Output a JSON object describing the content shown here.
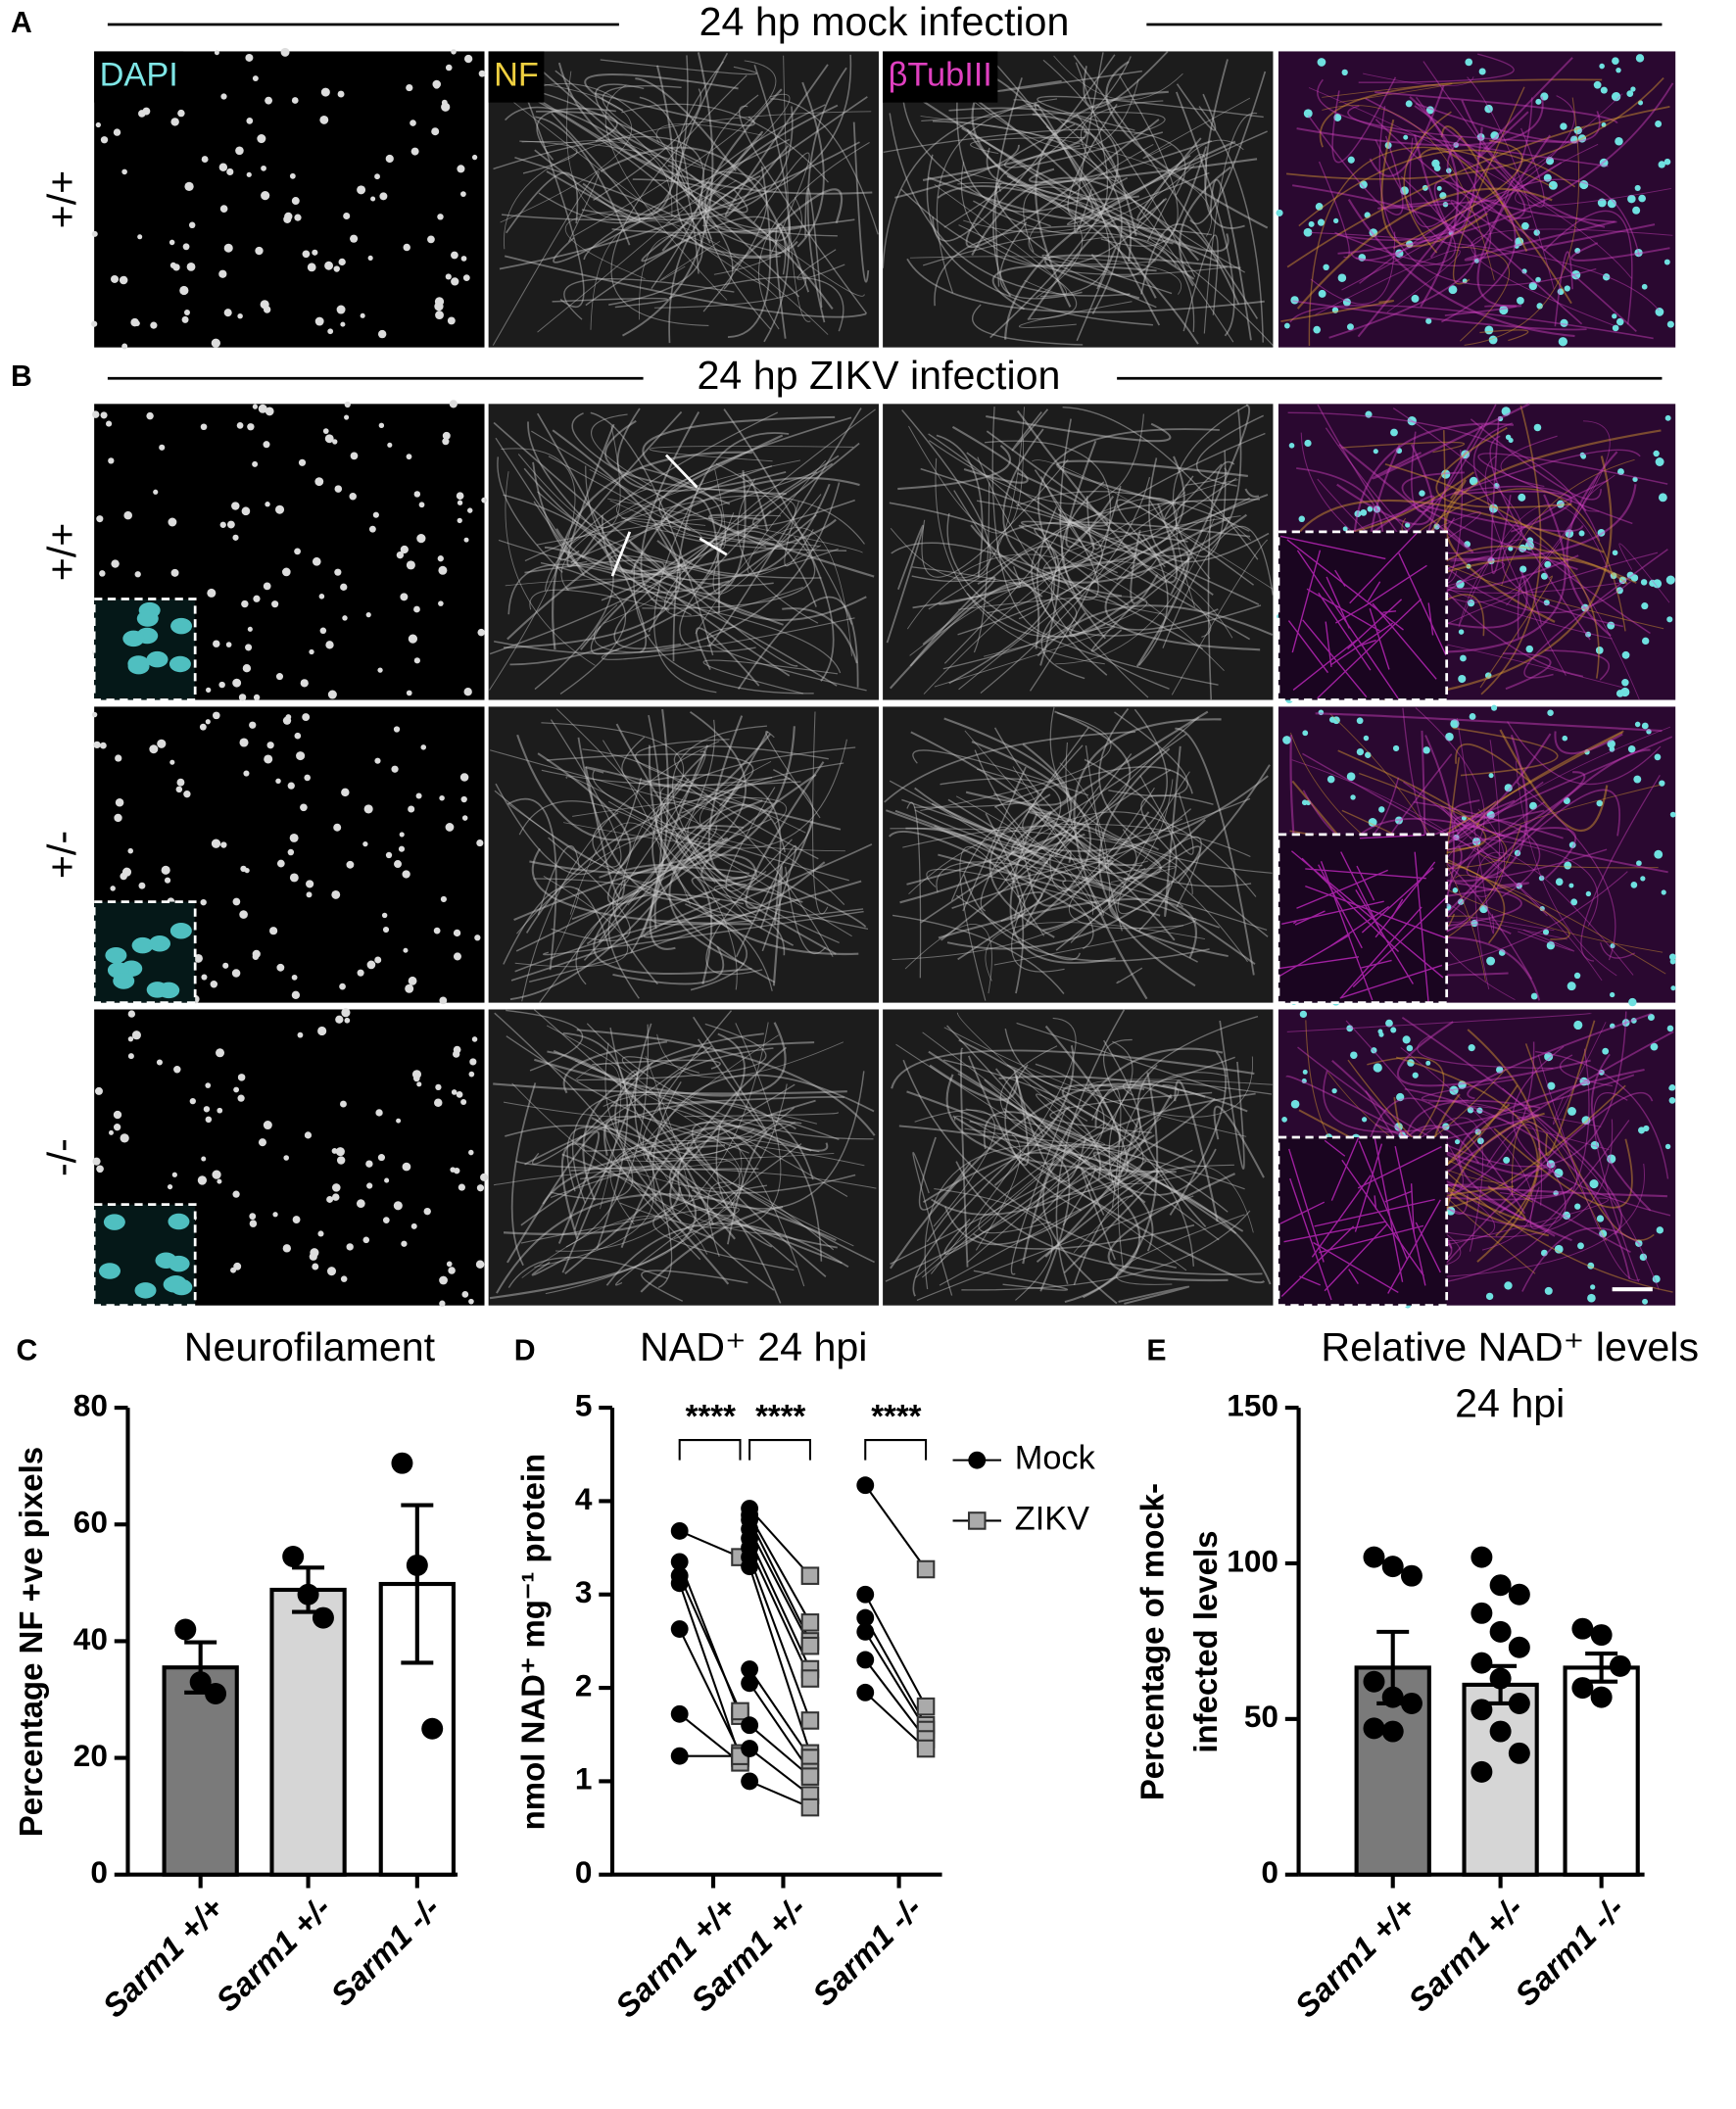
{
  "panel_A": {
    "letter": "A",
    "title": "24 hp mock infection",
    "channels": [
      "DAPI",
      "NF",
      "βTubIII"
    ],
    "rows": [
      "+/+"
    ]
  },
  "panel_B": {
    "letter": "B",
    "title": "24 hp ZIKV infection",
    "rows": [
      "+/+",
      "+/-",
      "-/-"
    ]
  },
  "chart_data": [
    {
      "type": "bar",
      "label": "C",
      "title": "Neurofilament",
      "ylabel": "Percentage NF +ve pixels",
      "categories": [
        "Sarm1 +/+",
        "Sarm1 +/-",
        "Sarm1 -/-"
      ],
      "values": [
        35.5,
        48.8,
        49.8
      ],
      "errors": [
        4.3,
        3.8,
        13.5
      ],
      "points": [
        [
          42,
          33,
          31
        ],
        [
          54.5,
          48,
          44
        ],
        [
          70.5,
          53,
          25
        ]
      ],
      "colors": [
        "#7a7a7a",
        "#d6d6d6",
        "#ffffff"
      ],
      "ylim": [
        0,
        80
      ],
      "yticks": [
        0,
        20,
        40,
        60,
        80
      ]
    },
    {
      "type": "scatter",
      "label": "D",
      "title": "NAD⁺ 24 hpi",
      "ylabel": "nmol NAD⁺ mg⁻¹ protein",
      "categories": [
        "Sarm1 +/+",
        "Sarm1 +/-",
        "Sarm1 -/-"
      ],
      "series": [
        {
          "name": "Mock",
          "color": "#000000",
          "values": [
            [
              3.68,
              3.35,
              3.2,
              3.12,
              2.63,
              1.72,
              1.27
            ],
            [
              3.92,
              3.85,
              3.8,
              3.7,
              3.6,
              3.5,
              3.4,
              3.3,
              2.2,
              2.05,
              1.6,
              1.35,
              1.0
            ],
            [
              4.17,
              3.0,
              2.75,
              2.6,
              2.3,
              1.95
            ]
          ]
        },
        {
          "name": "ZIKV",
          "color": "#aaaaaa",
          "values": [
            [
              3.4,
              1.7,
              1.75,
              1.25,
              1.3,
              1.2,
              1.27
            ],
            [
              3.2,
              2.7,
              2.5,
              2.45,
              2.2,
              2.1,
              1.65,
              1.3,
              1.25,
              1.1,
              1.05,
              0.85,
              0.72
            ],
            [
              3.27,
              1.8,
              1.6,
              1.55,
              1.45,
              1.35
            ]
          ]
        }
      ],
      "annotations": [
        "****",
        "****",
        "****"
      ],
      "ylim": [
        0,
        5
      ],
      "yticks": [
        0,
        1,
        2,
        3,
        4,
        5
      ]
    },
    {
      "type": "bar",
      "label": "E",
      "title": "Relative NAD⁺ levels",
      "subtitle": "24 hpi",
      "ylabel": [
        "Percentage of mock-",
        "infected levels"
      ],
      "categories": [
        "Sarm1 +/+",
        "Sarm1 +/-",
        "Sarm1 -/-"
      ],
      "values": [
        66.5,
        61,
        66.5
      ],
      "errors": [
        11.5,
        6,
        4.5
      ],
      "points": [
        [
          102,
          99,
          96,
          62,
          57,
          55,
          47,
          46
        ],
        [
          102,
          93,
          90,
          84,
          78,
          73,
          68,
          63,
          55,
          53,
          46,
          39,
          33
        ],
        [
          79,
          77,
          67,
          60,
          57
        ]
      ],
      "colors": [
        "#7a7a7a",
        "#d6d6d6",
        "#ffffff"
      ],
      "ylim": [
        0,
        150
      ],
      "yticks": [
        0,
        50,
        100,
        150
      ]
    }
  ]
}
